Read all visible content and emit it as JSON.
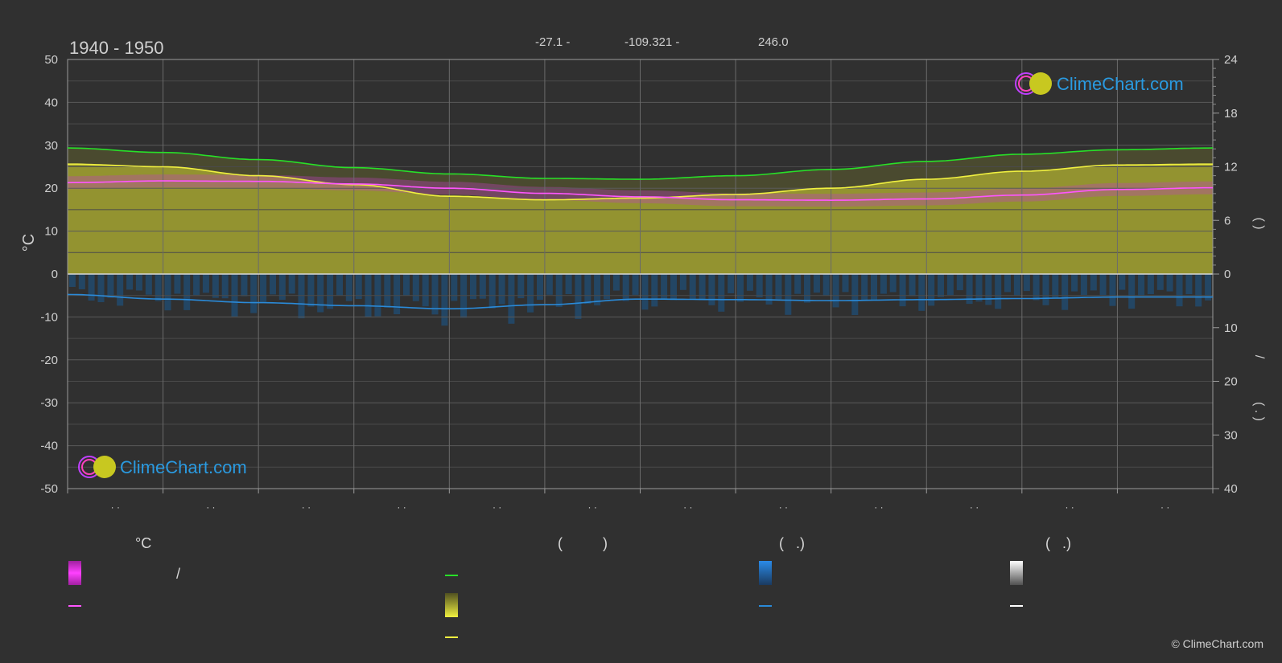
{
  "header": {
    "period": "1940 - 1950",
    "lat": "-27.1 -",
    "lon": "-109.321 -",
    "elev": "246.0"
  },
  "logo": {
    "text": "ClimeChart.com"
  },
  "copyright": "© ClimeChart.com",
  "legend": {
    "temp_unit": "°C",
    "col2_header": "(          )",
    "col3_header": "(   .)",
    "col4_header": "(   .)",
    "slash": "/"
  },
  "right_axis": {
    "sun_label": "(      )",
    "rain_label": "/",
    "rain_label2": "(  .  )"
  },
  "colors": {
    "bg": "#303030",
    "daylight": "#28e028",
    "sunshine": "#f0f040",
    "sun_fill": "#a0a030",
    "temp_mean": "#ff55ff",
    "temp_fill": "#c040c0",
    "rain": "#2a8ad8",
    "grid": "#5a5a5a"
  },
  "chart_data": {
    "type": "line",
    "x_months": 12,
    "month_labels": [
      "· ·",
      "· ·",
      "· ·",
      "· ·",
      "· ·",
      "· ·",
      "· ·",
      "· ·",
      "· ·",
      "· ·",
      "· ·",
      "· ·"
    ],
    "y_left": {
      "label": "°C",
      "ticks": [
        50,
        40,
        30,
        20,
        10,
        0,
        -10,
        -20,
        -30,
        -40,
        -50
      ],
      "range": [
        -50,
        50
      ]
    },
    "y_right_top": {
      "ticks": [
        24,
        18,
        12,
        6,
        0
      ],
      "range": [
        0,
        24
      ]
    },
    "y_right_bottom": {
      "ticks": [
        0,
        10,
        20,
        30,
        40
      ],
      "range": [
        0,
        40
      ]
    },
    "series": [
      {
        "key": "daylight_hours",
        "axis": "right_top",
        "values": [
          14.1,
          13.6,
          12.8,
          11.9,
          11.2,
          10.7,
          10.6,
          11.0,
          11.7,
          12.6,
          13.4,
          13.9,
          14.1
        ]
      },
      {
        "key": "sunshine_hours",
        "axis": "right_top",
        "values": [
          12.3,
          12.0,
          11.0,
          10.0,
          8.7,
          8.3,
          8.5,
          8.9,
          9.6,
          10.6,
          11.5,
          12.2,
          12.3
        ]
      },
      {
        "key": "temp_mean",
        "axis": "left",
        "values": [
          21.3,
          21.7,
          21.6,
          21.0,
          20.0,
          18.8,
          18.0,
          17.3,
          17.2,
          17.5,
          18.4,
          19.7,
          20.1
        ]
      },
      {
        "key": "precip_mm",
        "axis": "right_bottom",
        "values": [
          4.0,
          4.9,
          5.6,
          6.2,
          6.8,
          6.0,
          4.9,
          5.0,
          5.2,
          5.0,
          4.8,
          4.5,
          4.5
        ]
      }
    ]
  }
}
